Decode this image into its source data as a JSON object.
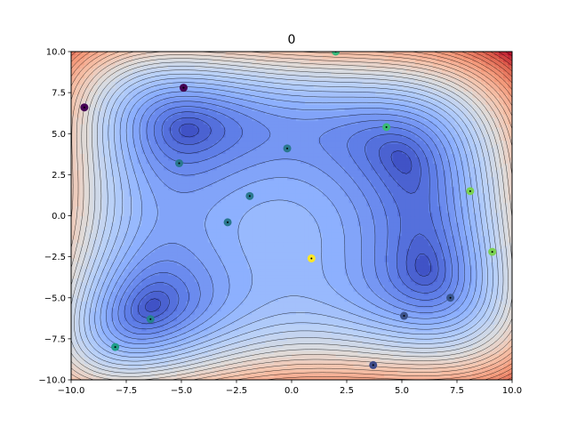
{
  "chart_data": {
    "type": "scatter",
    "title": "0",
    "xlabel": "",
    "ylabel": "",
    "xlim": [
      -10,
      10
    ],
    "ylim": [
      -10,
      10
    ],
    "x_ticks": [
      -10,
      -7.5,
      -5,
      -2.5,
      0,
      2.5,
      5,
      7.5,
      10
    ],
    "y_ticks": [
      -10,
      -7.5,
      -5,
      -2.5,
      0,
      2.5,
      5,
      7.5,
      10
    ],
    "x_tick_labels": [
      "−10.0",
      "−7.5",
      "−5.0",
      "−2.5",
      "0.0",
      "2.5",
      "5.0",
      "7.5",
      "10.0"
    ],
    "y_tick_labels": [
      "−10.0",
      "−7.5",
      "−5.0",
      "−2.5",
      "0.0",
      "2.5",
      "5.0",
      "7.5",
      "10.0"
    ],
    "grid": false,
    "background": "filled contour plot of a four-well surface, coolwarm colormap, with black contour lines",
    "colormap_points": "viridis",
    "points": [
      {
        "x": -9.4,
        "y": 6.6,
        "color": "#440154"
      },
      {
        "x": -4.9,
        "y": 7.8,
        "color": "#440154"
      },
      {
        "x": 2.0,
        "y": 10.0,
        "color": "#35b779"
      },
      {
        "x": 4.3,
        "y": 5.4,
        "color": "#3aba76"
      },
      {
        "x": -0.2,
        "y": 4.1,
        "color": "#2a788e"
      },
      {
        "x": -5.1,
        "y": 3.2,
        "color": "#2a788e"
      },
      {
        "x": -1.9,
        "y": 1.2,
        "color": "#2a788e"
      },
      {
        "x": 8.1,
        "y": 1.5,
        "color": "#7ad151"
      },
      {
        "x": -2.9,
        "y": -0.4,
        "color": "#2a788e"
      },
      {
        "x": 9.1,
        "y": -2.2,
        "color": "#7ad151"
      },
      {
        "x": 0.9,
        "y": -2.6,
        "color": "#fde725"
      },
      {
        "x": 7.2,
        "y": -5.0,
        "color": "#39568c"
      },
      {
        "x": -6.4,
        "y": -6.3,
        "color": "#26828e"
      },
      {
        "x": 5.1,
        "y": -6.1,
        "color": "#3b528b"
      },
      {
        "x": -8.0,
        "y": -8.0,
        "color": "#1f9e89"
      },
      {
        "x": 3.7,
        "y": -9.1,
        "color": "#3e4a89"
      }
    ]
  }
}
